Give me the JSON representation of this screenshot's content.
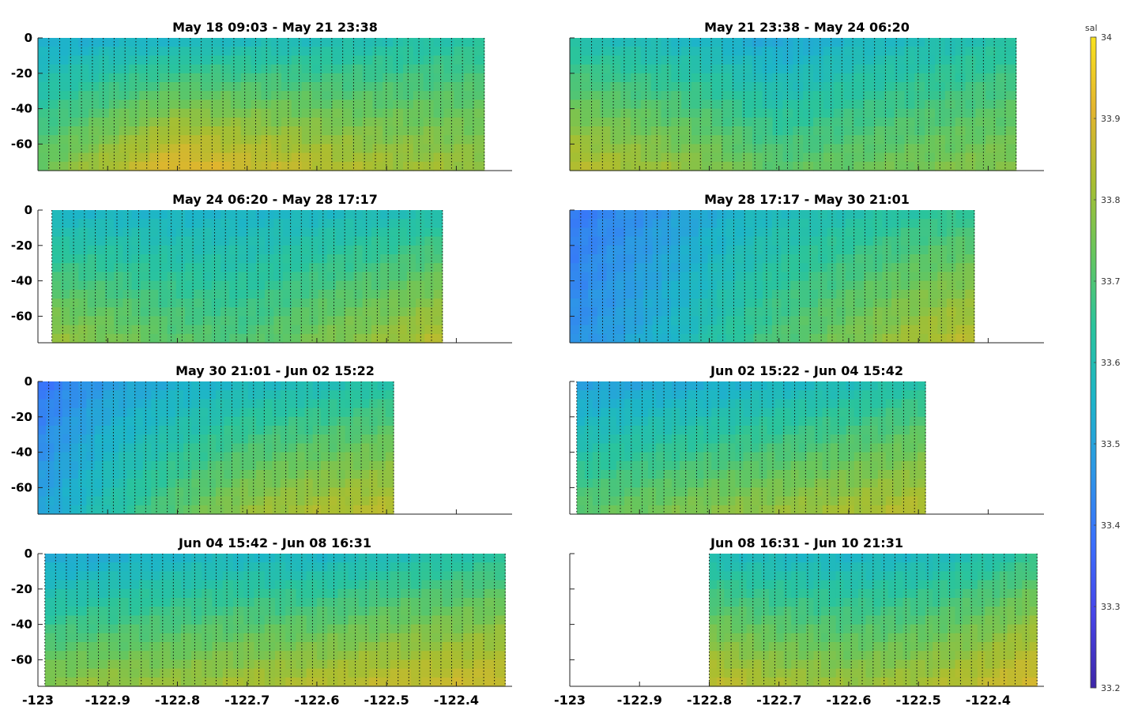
{
  "chart_data": {
    "type": "heatmap",
    "variable_label": "sal",
    "colormap": "parula",
    "grid": false,
    "legend": "colorbar-right",
    "xlim": [
      -123,
      -122.32
    ],
    "ylim": [
      -75,
      0
    ],
    "x_ticks": [
      -123,
      -122.9,
      -122.8,
      -122.7,
      -122.6,
      -122.5,
      -122.4
    ],
    "x_tick_labels": [
      "-123",
      "-122.9",
      "-122.8",
      "-122.7",
      "-122.6",
      "-122.5",
      "-122.4"
    ],
    "y_ticks": [
      0,
      -20,
      -40,
      -60
    ],
    "y_tick_labels": [
      "0",
      "-20",
      "-40",
      "-60"
    ],
    "colorbar": {
      "range": [
        33.2,
        34.0
      ],
      "ticks": [
        33.2,
        33.3,
        33.4,
        33.5,
        33.6,
        33.7,
        33.8,
        33.9,
        34.0
      ],
      "tick_labels": [
        "33.2",
        "33.3",
        "33.4",
        "33.5",
        "33.6",
        "33.7",
        "33.8",
        "33.9",
        "34"
      ],
      "colors": [
        "#3e26a8",
        "#4744e8",
        "#3b6ffd",
        "#2d97e6",
        "#1db5c8",
        "#2ac49c",
        "#66c65e",
        "#a9be30",
        "#e3b52e",
        "#f9e21e"
      ]
    },
    "panels": [
      {
        "title": "May 18 09:03 - May 21 23:38",
        "x_range": [
          -123.0,
          -122.36
        ],
        "profile": {
          "x": [
            -123.0,
            -122.8,
            -122.7,
            -122.6,
            -122.5,
            -122.36
          ],
          "surface": [
            33.52,
            33.55,
            33.57,
            33.58,
            33.6,
            33.63
          ],
          "deep": [
            33.74,
            33.92,
            33.88,
            33.85,
            33.82,
            33.8
          ]
        }
      },
      {
        "title": "May 21 23:38 - May 24 06:20",
        "x_range": [
          -123.0,
          -122.36
        ],
        "profile": {
          "x": [
            -123.0,
            -122.8,
            -122.7,
            -122.6,
            -122.5,
            -122.36
          ],
          "surface": [
            33.6,
            33.55,
            33.5,
            33.55,
            33.58,
            33.62
          ],
          "deep": [
            33.85,
            33.78,
            33.72,
            33.74,
            33.76,
            33.78
          ]
        }
      },
      {
        "title": "May 24 06:20 - May 28 17:17",
        "x_range": [
          -122.98,
          -122.42
        ],
        "profile": {
          "x": [
            -122.98,
            -122.8,
            -122.7,
            -122.6,
            -122.5,
            -122.42
          ],
          "surface": [
            33.55,
            33.55,
            33.55,
            33.56,
            33.58,
            33.6
          ],
          "deep": [
            33.8,
            33.72,
            33.7,
            33.76,
            33.8,
            33.85
          ]
        }
      },
      {
        "title": "May 28 17:17 - May 30 21:01",
        "x_range": [
          -123.0,
          -122.42
        ],
        "profile": {
          "x": [
            -123.0,
            -122.9,
            -122.8,
            -122.7,
            -122.6,
            -122.5,
            -122.42
          ],
          "surface": [
            33.4,
            33.45,
            33.52,
            33.58,
            33.6,
            33.63,
            33.65
          ],
          "deep": [
            33.45,
            33.52,
            33.62,
            33.7,
            33.76,
            33.82,
            33.85
          ]
        }
      },
      {
        "title": "May 30 21:01 - Jun 02 15:22",
        "x_range": [
          -123.0,
          -122.49
        ],
        "profile": {
          "x": [
            -123.0,
            -122.9,
            -122.8,
            -122.7,
            -122.6,
            -122.49
          ],
          "surface": [
            33.38,
            33.48,
            33.53,
            33.56,
            33.58,
            33.62
          ],
          "deep": [
            33.5,
            33.62,
            33.72,
            33.8,
            33.83,
            33.85
          ]
        }
      },
      {
        "title": "Jun 02 15:22 - Jun 04 15:42",
        "x_range": [
          -122.99,
          -122.49
        ],
        "profile": {
          "x": [
            -122.99,
            -122.9,
            -122.8,
            -122.7,
            -122.6,
            -122.49
          ],
          "surface": [
            33.48,
            33.5,
            33.52,
            33.55,
            33.58,
            33.62
          ],
          "deep": [
            33.72,
            33.75,
            33.78,
            33.8,
            33.82,
            33.85
          ]
        }
      },
      {
        "title": "Jun 04 15:42 - Jun 08 16:31",
        "x_range": [
          -122.99,
          -122.33
        ],
        "profile": {
          "x": [
            -122.99,
            -122.9,
            -122.8,
            -122.7,
            -122.6,
            -122.5,
            -122.33
          ],
          "surface": [
            33.5,
            33.52,
            33.55,
            33.56,
            33.55,
            33.58,
            33.63
          ],
          "deep": [
            33.78,
            33.8,
            33.8,
            33.82,
            33.84,
            33.86,
            33.88
          ]
        }
      },
      {
        "title": "Jun 08 16:31 - Jun 10 21:31",
        "x_range": [
          -122.8,
          -122.33
        ],
        "profile": {
          "x": [
            -122.8,
            -122.7,
            -122.6,
            -122.5,
            -122.4,
            -122.33
          ],
          "surface": [
            33.58,
            33.56,
            33.55,
            33.56,
            33.6,
            33.65
          ],
          "deep": [
            33.86,
            33.82,
            33.8,
            33.82,
            33.86,
            33.9
          ]
        }
      }
    ]
  }
}
